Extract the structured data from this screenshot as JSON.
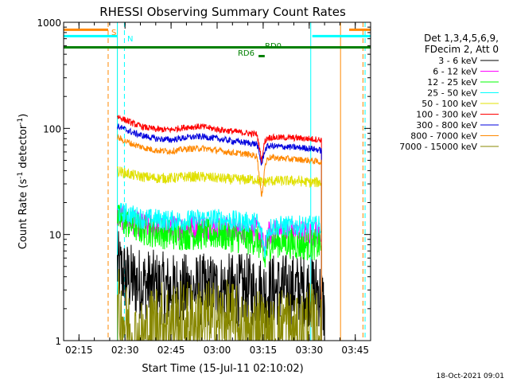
{
  "chart_data": {
    "type": "line",
    "title": "RHESSI Observing Summary Count Rates",
    "xlabel": "Start Time (15-Jul-11 02:10:02)",
    "ylabel_main": "Count Rate (s",
    "ylabel_sup1": "-1",
    "ylabel_mid": " detector",
    "ylabel_sup2": "-1",
    "ylabel_end": ")",
    "x_unit": "minutes since 02:10:02",
    "xlim": [
      0,
      100
    ],
    "ylim": [
      1,
      1000
    ],
    "yscale": "log",
    "x_ticks": [
      {
        "value": 5,
        "label": "02:15"
      },
      {
        "value": 20,
        "label": "02:30"
      },
      {
        "value": 35,
        "label": "02:45"
      },
      {
        "value": 50,
        "label": "03:00"
      },
      {
        "value": 65,
        "label": "03:15"
      },
      {
        "value": 80,
        "label": "03:30"
      },
      {
        "value": 95,
        "label": "03:45"
      }
    ],
    "y_ticks": [
      {
        "value": 1,
        "label": "1"
      },
      {
        "value": 10,
        "label": "10"
      },
      {
        "value": 100,
        "label": "100"
      },
      {
        "value": 1000,
        "label": "1000"
      }
    ],
    "legend_header": [
      "Det 1,3,4,5,6,9,",
      "FDecim 2, Att 0"
    ],
    "series": [
      {
        "name": "3 - 6 keV",
        "color": "#000000",
        "values": [
          [
            17.5,
            5
          ],
          [
            20,
            4
          ],
          [
            23,
            3.6
          ],
          [
            26,
            3.4
          ],
          [
            30,
            3.2
          ],
          [
            35,
            3.0
          ],
          [
            40,
            3.0
          ],
          [
            45,
            3.0
          ],
          [
            50,
            3.0
          ],
          [
            55,
            3.0
          ],
          [
            60,
            3.0
          ],
          [
            63,
            3.0
          ],
          [
            65,
            2.8
          ],
          [
            68,
            3.0
          ],
          [
            72,
            3.0
          ],
          [
            76,
            3.0
          ],
          [
            80,
            3.0
          ],
          [
            83,
            3.0
          ],
          [
            85,
            2.0
          ]
        ]
      },
      {
        "name": "6 - 12 keV",
        "color": "#ff00ff",
        "values": [
          [
            17.5,
            15
          ],
          [
            20,
            14
          ],
          [
            23,
            13
          ],
          [
            26,
            12
          ],
          [
            30,
            12
          ],
          [
            35,
            11.5
          ],
          [
            40,
            11.5
          ],
          [
            45,
            12
          ],
          [
            50,
            11.5
          ],
          [
            55,
            11
          ],
          [
            60,
            11
          ],
          [
            63,
            11
          ],
          [
            64.5,
            9
          ],
          [
            65.5,
            7
          ],
          [
            66.5,
            10
          ],
          [
            68,
            10.5
          ],
          [
            72,
            10.5
          ],
          [
            76,
            10.5
          ],
          [
            80,
            10.5
          ],
          [
            84,
            10
          ]
        ]
      },
      {
        "name": "12 - 25 keV",
        "color": "#00ff00",
        "values": [
          [
            17.5,
            14
          ],
          [
            20,
            13
          ],
          [
            23,
            12
          ],
          [
            26,
            11
          ],
          [
            30,
            10.5
          ],
          [
            35,
            10
          ],
          [
            40,
            10
          ],
          [
            45,
            10
          ],
          [
            50,
            10
          ],
          [
            55,
            9.5
          ],
          [
            60,
            9
          ],
          [
            63,
            9
          ],
          [
            64.5,
            7
          ],
          [
            65.5,
            5.5
          ],
          [
            66.5,
            8
          ],
          [
            68,
            8.5
          ],
          [
            72,
            8.5
          ],
          [
            76,
            8
          ],
          [
            80,
            8
          ],
          [
            84,
            8
          ]
        ]
      },
      {
        "name": "25 - 50 keV",
        "color": "#00ffff",
        "values": [
          [
            17.5,
            16
          ],
          [
            20,
            16
          ],
          [
            23,
            15
          ],
          [
            26,
            14
          ],
          [
            30,
            14
          ],
          [
            35,
            13.5
          ],
          [
            40,
            13.5
          ],
          [
            45,
            14
          ],
          [
            50,
            14
          ],
          [
            55,
            13.5
          ],
          [
            60,
            13
          ],
          [
            63,
            13
          ],
          [
            64.5,
            10
          ],
          [
            65.5,
            7
          ],
          [
            66.5,
            11
          ],
          [
            68,
            12
          ],
          [
            72,
            12
          ],
          [
            76,
            12
          ],
          [
            80,
            12
          ],
          [
            84,
            12
          ]
        ]
      },
      {
        "name": "50 - 100 keV",
        "color": "#e0e000",
        "values": [
          [
            17.5,
            40
          ],
          [
            20,
            38
          ],
          [
            23,
            36
          ],
          [
            26,
            35
          ],
          [
            30,
            34
          ],
          [
            35,
            34
          ],
          [
            40,
            35
          ],
          [
            45,
            35
          ],
          [
            50,
            34
          ],
          [
            55,
            33
          ],
          [
            60,
            33
          ],
          [
            63,
            33
          ],
          [
            64.5,
            31
          ],
          [
            65.5,
            31
          ],
          [
            66.5,
            32
          ],
          [
            68,
            32
          ],
          [
            72,
            32
          ],
          [
            76,
            32
          ],
          [
            80,
            31
          ],
          [
            84,
            31
          ]
        ]
      },
      {
        "name": "100 - 300 keV",
        "color": "#ff0000",
        "values": [
          [
            17.5,
            130
          ],
          [
            20,
            120
          ],
          [
            23,
            110
          ],
          [
            26,
            103
          ],
          [
            30,
            98
          ],
          [
            35,
            97
          ],
          [
            40,
            103
          ],
          [
            45,
            104
          ],
          [
            50,
            98
          ],
          [
            55,
            94
          ],
          [
            60,
            90
          ],
          [
            63,
            88
          ],
          [
            64.5,
            50
          ],
          [
            65.5,
            75
          ],
          [
            66.5,
            82
          ],
          [
            68,
            82
          ],
          [
            72,
            82
          ],
          [
            76,
            81
          ],
          [
            80,
            80
          ],
          [
            84,
            78
          ]
        ]
      },
      {
        "name": "300 - 800 keV",
        "color": "#0000dd",
        "values": [
          [
            17.5,
            105
          ],
          [
            20,
            98
          ],
          [
            23,
            90
          ],
          [
            26,
            85
          ],
          [
            30,
            80
          ],
          [
            35,
            78
          ],
          [
            40,
            82
          ],
          [
            45,
            84
          ],
          [
            50,
            80
          ],
          [
            55,
            76
          ],
          [
            60,
            73
          ],
          [
            63,
            71
          ],
          [
            64.5,
            45
          ],
          [
            65.5,
            62
          ],
          [
            66.5,
            68
          ],
          [
            68,
            68
          ],
          [
            72,
            67
          ],
          [
            76,
            66
          ],
          [
            80,
            65
          ],
          [
            84,
            62
          ]
        ]
      },
      {
        "name": "800 - 7000 keV",
        "color": "#ff8800",
        "values": [
          [
            17.5,
            82
          ],
          [
            20,
            76
          ],
          [
            23,
            70
          ],
          [
            26,
            66
          ],
          [
            30,
            62
          ],
          [
            35,
            61
          ],
          [
            40,
            64
          ],
          [
            45,
            65
          ],
          [
            50,
            62
          ],
          [
            55,
            59
          ],
          [
            60,
            57
          ],
          [
            63,
            55
          ],
          [
            64.5,
            22
          ],
          [
            65.5,
            43
          ],
          [
            66.5,
            53
          ],
          [
            68,
            53
          ],
          [
            72,
            52
          ],
          [
            76,
            51
          ],
          [
            80,
            50
          ],
          [
            84,
            48
          ]
        ]
      },
      {
        "name": "7000 - 15000 keV",
        "color": "#888800",
        "values": [
          [
            17.5,
            2
          ],
          [
            20,
            1.5
          ],
          [
            23,
            1
          ],
          [
            26,
            1
          ],
          [
            30,
            1.5
          ],
          [
            35,
            1.5
          ],
          [
            40,
            1.5
          ],
          [
            45,
            1.5
          ],
          [
            50,
            1.5
          ],
          [
            55,
            1.5
          ],
          [
            60,
            1
          ],
          [
            63,
            1.5
          ],
          [
            66.5,
            1
          ],
          [
            68,
            1
          ],
          [
            72,
            1.5
          ],
          [
            76,
            1
          ],
          [
            80,
            1.5
          ],
          [
            84,
            1
          ]
        ]
      }
    ],
    "flags": [
      {
        "name": "S",
        "color": "#ff8800",
        "y": 850,
        "segments": [
          [
            0,
            14.5
          ],
          [
            93,
            100
          ]
        ]
      },
      {
        "name": "N",
        "color": "#00ffff",
        "y": 740,
        "segments": [
          [
            0,
            17.5
          ],
          [
            81,
            100
          ]
        ]
      },
      {
        "name": "RD0",
        "color": "#008000",
        "y": 580,
        "segments": [
          [
            0,
            100
          ]
        ]
      },
      {
        "name": "RD6",
        "color": "#008000",
        "y": 480,
        "segments": [
          [
            63.5,
            65.5
          ]
        ]
      }
    ],
    "vlines": [
      {
        "x": 14.5,
        "color": "#ff8800",
        "dashed": true
      },
      {
        "x": 17.5,
        "color": "#ff8800",
        "dashed": false
      },
      {
        "x": 17.5,
        "color": "#00ffff",
        "dashed": false
      },
      {
        "x": 19.8,
        "color": "#00ffff",
        "dashed": true
      },
      {
        "x": 80.5,
        "color": "#00ffff",
        "dashed": false
      },
      {
        "x": 90.2,
        "color": "#ff8800",
        "dashed": false
      },
      {
        "x": 97.5,
        "color": "#ff8800",
        "dashed": true
      },
      {
        "x": 98.2,
        "color": "#00ffff",
        "dashed": true
      }
    ],
    "footer": "18-Oct-2021 09:01"
  }
}
